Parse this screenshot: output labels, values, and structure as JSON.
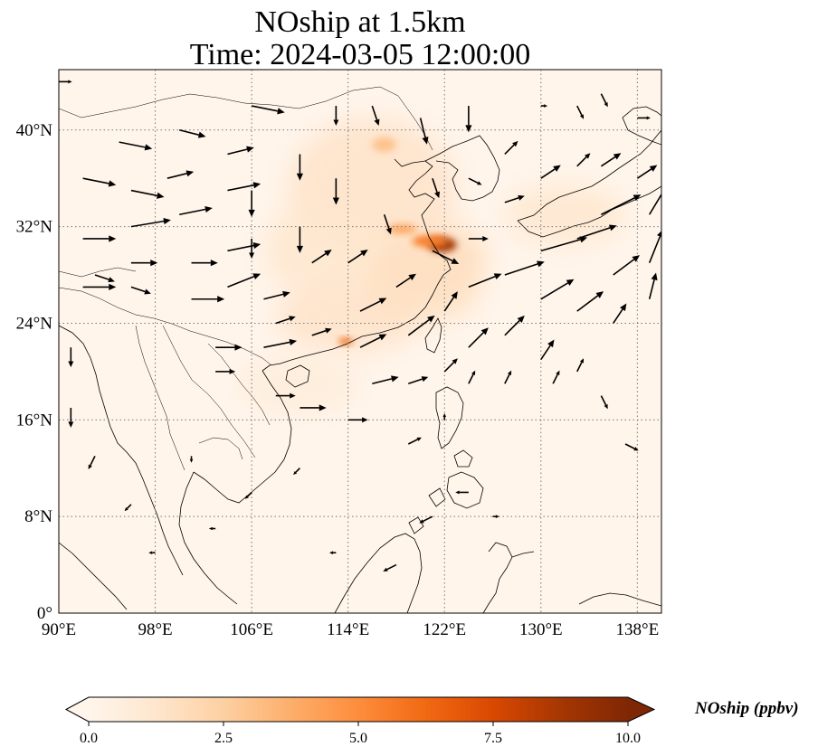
{
  "title": {
    "line1": "NOship at 1.5km",
    "line2": "Time: 2024-03-05 12:00:00"
  },
  "map": {
    "extent": {
      "lon_min": 90,
      "lon_max": 140,
      "lat_min": 0,
      "lat_max": 45
    },
    "xticks": [
      {
        "value": 90,
        "label": "90°E"
      },
      {
        "value": 98,
        "label": "98°E"
      },
      {
        "value": 106,
        "label": "106°E"
      },
      {
        "value": 114,
        "label": "114°E"
      },
      {
        "value": 122,
        "label": "122°E"
      },
      {
        "value": 130,
        "label": "130°E"
      },
      {
        "value": 138,
        "label": "138°E"
      }
    ],
    "yticks": [
      {
        "value": 0,
        "label": "0°"
      },
      {
        "value": 8,
        "label": "8°N"
      },
      {
        "value": 16,
        "label": "16°N"
      },
      {
        "value": 24,
        "label": "24°N"
      },
      {
        "value": 32,
        "label": "32°N"
      },
      {
        "value": 40,
        "label": "40°N"
      }
    ],
    "gridlines": "dotted",
    "background_color": "#fff5eb",
    "plumes": [
      {
        "lon": 120.5,
        "lat": 29.5,
        "rx": 5,
        "ry": 3,
        "intensity": 0.18
      },
      {
        "lon": 116,
        "lat": 35,
        "rx": 7,
        "ry": 6,
        "intensity": 0.14
      },
      {
        "lon": 112,
        "lat": 30,
        "rx": 5,
        "ry": 4,
        "intensity": 0.12
      },
      {
        "lon": 114,
        "lat": 24.5,
        "rx": 6,
        "ry": 3,
        "intensity": 0.14
      },
      {
        "lon": 120,
        "lat": 27,
        "rx": 5,
        "ry": 3,
        "intensity": 0.16
      },
      {
        "lon": 132,
        "lat": 33,
        "rx": 5,
        "ry": 2.5,
        "intensity": 0.12
      },
      {
        "lon": 110,
        "lat": 19,
        "rx": 5,
        "ry": 2.5,
        "intensity": 0.07
      }
    ],
    "hotspots": [
      {
        "lon": 121.8,
        "lat": 30.5,
        "rx": 1.2,
        "ry": 0.6,
        "intensity": 0.9
      },
      {
        "lon": 120.8,
        "lat": 30.8,
        "rx": 1.5,
        "ry": 0.5,
        "intensity": 0.55
      },
      {
        "lon": 113.8,
        "lat": 22.5,
        "rx": 0.6,
        "ry": 0.3,
        "intensity": 0.6
      },
      {
        "lon": 118.5,
        "lat": 31.8,
        "rx": 1.2,
        "ry": 0.4,
        "intensity": 0.4
      },
      {
        "lon": 117,
        "lat": 38.8,
        "rx": 1.0,
        "ry": 0.6,
        "intensity": 0.3
      }
    ],
    "arrow_scale": 0.55
  },
  "chart_data": {
    "type": "heatmap",
    "variable": "NOship",
    "unit": "ppbv",
    "vector_field": [
      {
        "lon": 90,
        "lat": 44,
        "u": 2,
        "v": 0
      },
      {
        "lon": 92,
        "lat": 36,
        "u": 5,
        "v": -1
      },
      {
        "lon": 92,
        "lat": 31,
        "u": 5,
        "v": 0
      },
      {
        "lon": 92,
        "lat": 27,
        "u": 5,
        "v": 0
      },
      {
        "lon": 93,
        "lat": 28,
        "u": 3,
        "v": -1
      },
      {
        "lon": 95,
        "lat": 39,
        "u": 5,
        "v": -1
      },
      {
        "lon": 96,
        "lat": 35,
        "u": 5,
        "v": -1
      },
      {
        "lon": 96,
        "lat": 32,
        "u": 6,
        "v": 1
      },
      {
        "lon": 96,
        "lat": 29,
        "u": 4,
        "v": 0
      },
      {
        "lon": 96,
        "lat": 27,
        "u": 3,
        "v": -1
      },
      {
        "lon": 99,
        "lat": 36,
        "u": 4,
        "v": 1
      },
      {
        "lon": 100,
        "lat": 40,
        "u": 4,
        "v": -1
      },
      {
        "lon": 100,
        "lat": 33,
        "u": 5,
        "v": 1
      },
      {
        "lon": 101,
        "lat": 29,
        "u": 4,
        "v": 0
      },
      {
        "lon": 101,
        "lat": 26,
        "u": 5,
        "v": 0
      },
      {
        "lon": 104,
        "lat": 38,
        "u": 4,
        "v": 1
      },
      {
        "lon": 104,
        "lat": 35,
        "u": 5,
        "v": 1
      },
      {
        "lon": 104,
        "lat": 30,
        "u": 5,
        "v": 1
      },
      {
        "lon": 104,
        "lat": 27,
        "u": 5,
        "v": 2
      },
      {
        "lon": 103,
        "lat": 22,
        "u": 4,
        "v": 0
      },
      {
        "lon": 103,
        "lat": 20,
        "u": 3,
        "v": 0
      },
      {
        "lon": 106,
        "lat": 42,
        "u": 5,
        "v": -1
      },
      {
        "lon": 106,
        "lat": 35,
        "u": 0,
        "v": -4
      },
      {
        "lon": 106,
        "lat": 31,
        "u": 0,
        "v": -3
      },
      {
        "lon": 107,
        "lat": 26,
        "u": 4,
        "v": 1
      },
      {
        "lon": 107,
        "lat": 22,
        "u": 5,
        "v": 1
      },
      {
        "lon": 108,
        "lat": 24,
        "u": 3,
        "v": 1
      },
      {
        "lon": 108,
        "lat": 18,
        "u": 3,
        "v": 0
      },
      {
        "lon": 110,
        "lat": 38,
        "u": 0,
        "v": -4
      },
      {
        "lon": 110,
        "lat": 32,
        "u": 0,
        "v": -4
      },
      {
        "lon": 111,
        "lat": 29,
        "u": 3,
        "v": 2
      },
      {
        "lon": 111,
        "lat": 23,
        "u": 3,
        "v": 1
      },
      {
        "lon": 110,
        "lat": 17,
        "u": 4,
        "v": 0
      },
      {
        "lon": 113,
        "lat": 42,
        "u": 0,
        "v": -3
      },
      {
        "lon": 113,
        "lat": 36,
        "u": 0,
        "v": -4
      },
      {
        "lon": 114,
        "lat": 29,
        "u": 3,
        "v": 2
      },
      {
        "lon": 115,
        "lat": 25,
        "u": 4,
        "v": 2
      },
      {
        "lon": 115,
        "lat": 22,
        "u": 4,
        "v": 2
      },
      {
        "lon": 116,
        "lat": 19,
        "u": 4,
        "v": 1
      },
      {
        "lon": 114,
        "lat": 16,
        "u": 3,
        "v": 0
      },
      {
        "lon": 116,
        "lat": 42,
        "u": 1,
        "v": -3
      },
      {
        "lon": 117,
        "lat": 33,
        "u": 1,
        "v": -3
      },
      {
        "lon": 118,
        "lat": 27,
        "u": 3,
        "v": 2
      },
      {
        "lon": 119,
        "lat": 23,
        "u": 4,
        "v": 3
      },
      {
        "lon": 119,
        "lat": 19,
        "u": 3,
        "v": 1
      },
      {
        "lon": 119,
        "lat": 14,
        "u": 2,
        "v": 1
      },
      {
        "lon": 120,
        "lat": 41,
        "u": 1,
        "v": -4
      },
      {
        "lon": 121,
        "lat": 36,
        "u": 1,
        "v": -3
      },
      {
        "lon": 121,
        "lat": 30,
        "u": 4,
        "v": -2
      },
      {
        "lon": 122,
        "lat": 25,
        "u": 2,
        "v": 3
      },
      {
        "lon": 122,
        "lat": 20,
        "u": 2,
        "v": 2
      },
      {
        "lon": 122,
        "lat": 16,
        "u": 0,
        "v": 1
      },
      {
        "lon": 124,
        "lat": 42,
        "u": 0,
        "v": -4
      },
      {
        "lon": 124,
        "lat": 36,
        "u": 2,
        "v": -1
      },
      {
        "lon": 124,
        "lat": 31,
        "u": 3,
        "v": 0
      },
      {
        "lon": 124,
        "lat": 27,
        "u": 5,
        "v": 2
      },
      {
        "lon": 124,
        "lat": 22,
        "u": 3,
        "v": 3
      },
      {
        "lon": 124,
        "lat": 19,
        "u": 1,
        "v": 2
      },
      {
        "lon": 127,
        "lat": 38,
        "u": 2,
        "v": 2
      },
      {
        "lon": 127,
        "lat": 34,
        "u": 3,
        "v": 1
      },
      {
        "lon": 127,
        "lat": 28,
        "u": 6,
        "v": 2
      },
      {
        "lon": 127,
        "lat": 23,
        "u": 3,
        "v": 3
      },
      {
        "lon": 127,
        "lat": 19,
        "u": 1,
        "v": 2
      },
      {
        "lon": 130,
        "lat": 42,
        "u": 1,
        "v": 0
      },
      {
        "lon": 130,
        "lat": 36,
        "u": 3,
        "v": 2
      },
      {
        "lon": 130,
        "lat": 30,
        "u": 7,
        "v": 2
      },
      {
        "lon": 130,
        "lat": 26,
        "u": 5,
        "v": 3
      },
      {
        "lon": 130,
        "lat": 21,
        "u": 2,
        "v": 3
      },
      {
        "lon": 131,
        "lat": 19,
        "u": 1,
        "v": 2
      },
      {
        "lon": 133,
        "lat": 42,
        "u": 1,
        "v": -2
      },
      {
        "lon": 133,
        "lat": 37,
        "u": 2,
        "v": 2
      },
      {
        "lon": 133,
        "lat": 31,
        "u": 6,
        "v": 2
      },
      {
        "lon": 133,
        "lat": 25,
        "u": 4,
        "v": 3
      },
      {
        "lon": 133,
        "lat": 20,
        "u": 1,
        "v": 2
      },
      {
        "lon": 135,
        "lat": 43,
        "u": 1,
        "v": -2
      },
      {
        "lon": 135,
        "lat": 37,
        "u": 3,
        "v": 2
      },
      {
        "lon": 135,
        "lat": 33,
        "u": 6,
        "v": 3
      },
      {
        "lon": 136,
        "lat": 28,
        "u": 4,
        "v": 3
      },
      {
        "lon": 136,
        "lat": 24,
        "u": 2,
        "v": 3
      },
      {
        "lon": 135,
        "lat": 18,
        "u": 1,
        "v": -2
      },
      {
        "lon": 137,
        "lat": 14,
        "u": 2,
        "v": -1
      },
      {
        "lon": 138,
        "lat": 41,
        "u": 2,
        "v": 0
      },
      {
        "lon": 138,
        "lat": 36,
        "u": 3,
        "v": 2
      },
      {
        "lon": 139,
        "lat": 33,
        "u": 3,
        "v": 5
      },
      {
        "lon": 139,
        "lat": 29,
        "u": 2,
        "v": 5
      },
      {
        "lon": 139,
        "lat": 26,
        "u": 1,
        "v": 4
      },
      {
        "lon": 91,
        "lat": 22,
        "u": 0,
        "v": -3
      },
      {
        "lon": 91,
        "lat": 17,
        "u": 0,
        "v": -3
      },
      {
        "lon": 93,
        "lat": 13,
        "u": -1,
        "v": -2
      },
      {
        "lon": 96,
        "lat": 9,
        "u": -1,
        "v": -1
      },
      {
        "lon": 98,
        "lat": 5,
        "u": -1,
        "v": 0
      },
      {
        "lon": 101,
        "lat": 13,
        "u": 0,
        "v": -1
      },
      {
        "lon": 103,
        "lat": 7,
        "u": -1,
        "v": 0
      },
      {
        "lon": 106,
        "lat": 10,
        "u": -1,
        "v": -1
      },
      {
        "lon": 110,
        "lat": 12,
        "u": -1,
        "v": -1
      },
      {
        "lon": 113,
        "lat": 5,
        "u": -1,
        "v": 0
      },
      {
        "lon": 118,
        "lat": 4,
        "u": -2,
        "v": -1
      },
      {
        "lon": 121,
        "lat": 8,
        "u": -2,
        "v": -1
      },
      {
        "lon": 124,
        "lat": 10,
        "u": -2,
        "v": 0
      },
      {
        "lon": 126,
        "lat": 8,
        "u": 1,
        "v": 0
      }
    ],
    "colorbar": {
      "label": "NOship (ppbv)",
      "min": 0.0,
      "max": 10.0,
      "extend": "both",
      "ticks": [
        {
          "value": 0.0,
          "label": "0.0"
        },
        {
          "value": 2.5,
          "label": "2.5"
        },
        {
          "value": 5.0,
          "label": "5.0"
        },
        {
          "value": 7.5,
          "label": "7.5"
        },
        {
          "value": 10.0,
          "label": "10.0"
        }
      ],
      "colors": [
        "#fff5eb",
        "#fee6ce",
        "#fdd0a2",
        "#fdae6b",
        "#fd8d3c",
        "#f16913",
        "#d94801",
        "#a63603",
        "#7f2704"
      ]
    }
  }
}
